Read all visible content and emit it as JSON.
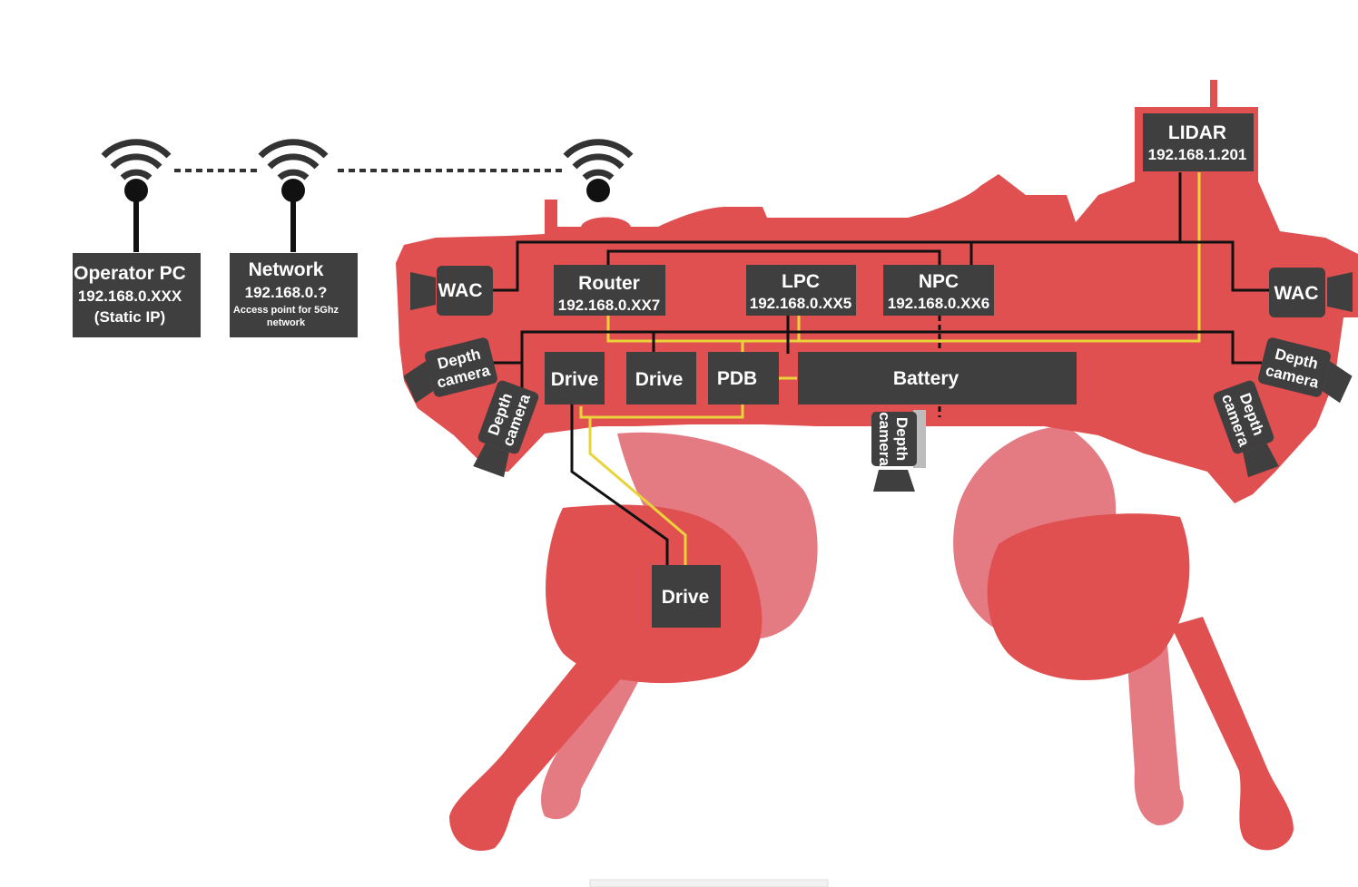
{
  "colors": {
    "body": "#e05050",
    "leg_back": "#e47a82",
    "box": "#3f3f3f",
    "cable_data": "#111111",
    "cable_power": "#e8d43a"
  },
  "wireless": {
    "icons": [
      "wifi-icon",
      "wifi-icon",
      "wifi-icon"
    ]
  },
  "external": {
    "operator_pc": {
      "title": "Operator PC",
      "ip": "192.168.0.XXX",
      "note": "(Static IP)"
    },
    "network": {
      "title": "Network",
      "ip": "192.168.0.?",
      "note_line1": "Access point for 5Ghz",
      "note_line2": "network"
    }
  },
  "robot": {
    "lidar": {
      "title": "LIDAR",
      "ip": "192.168.1.201"
    },
    "router": {
      "title": "Router",
      "ip": "192.168.0.XX7"
    },
    "lpc": {
      "title": "LPC",
      "ip": "192.168.0.XX5"
    },
    "npc": {
      "title": "NPC",
      "ip": "192.168.0.XX6"
    },
    "wac_left": "WAC",
    "wac_right": "WAC",
    "drive_1": "Drive",
    "drive_2": "Drive",
    "drive_leg": "Drive",
    "pdb": "PDB",
    "battery": "Battery",
    "cameras": {
      "line1": "Depth",
      "line2": "camera"
    }
  }
}
